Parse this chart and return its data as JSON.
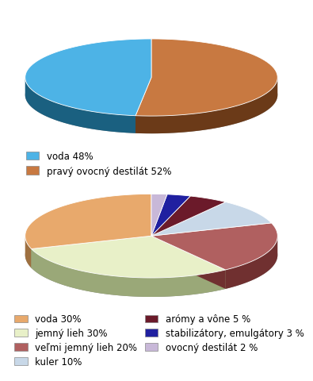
{
  "chart1": {
    "values": [
      48,
      52
    ],
    "colors": [
      "#4db3e6",
      "#c87941"
    ],
    "shadow_colors": [
      "#1a6080",
      "#6b3a18"
    ],
    "labels": [
      "voda 48%",
      "pravý ovocný destilát 52%"
    ],
    "startangle": 90
  },
  "chart2": {
    "values": [
      30,
      30,
      20,
      10,
      5,
      3,
      2
    ],
    "colors": [
      "#e8a96c",
      "#e8f0c8",
      "#b06060",
      "#c8d8e8",
      "#6b1a2a",
      "#2020a0",
      "#c8b8d8"
    ],
    "shadow_colors": [
      "#9e7040",
      "#9aa878",
      "#703030",
      "#8090a0",
      "#3a0a14",
      "#10106a",
      "#9080a8"
    ],
    "labels": [
      "voda 30%",
      "jemný lieh 30%",
      "veľmi jemný lieh 20%",
      "kuler 10%",
      "arómy a vône 5 %",
      "stabilizátory, emulgátory 3 %",
      "ovocný destilát 2 %"
    ],
    "startangle": 90
  },
  "bg_color": "#ffffff",
  "font_size": 8.5
}
